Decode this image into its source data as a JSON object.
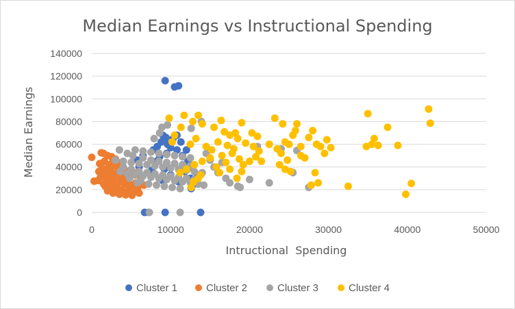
{
  "chart_data": {
    "type": "scatter",
    "title": "Median Earnings vs Instructional Spending",
    "xlabel": "Intructional  Spending",
    "ylabel": "Median Earnings",
    "xlim": [
      0,
      50000
    ],
    "ylim": [
      0,
      140000
    ],
    "xticks": [
      0,
      10000,
      20000,
      30000,
      40000,
      50000
    ],
    "yticks": [
      0,
      20000,
      40000,
      60000,
      80000,
      100000,
      120000,
      140000
    ],
    "grid": "horizontal",
    "legend": "bottom",
    "series": [
      {
        "name": "Cluster 1",
        "color": "#4472C4",
        "points": [
          [
            9300,
            116000
          ],
          [
            10500,
            110500
          ],
          [
            11000,
            111500
          ],
          [
            6700,
            0
          ],
          [
            7200,
            0
          ],
          [
            9300,
            0
          ],
          [
            13800,
            0
          ],
          [
            9000,
            68000
          ],
          [
            9400,
            66000
          ],
          [
            10300,
            65000
          ],
          [
            10800,
            68000
          ],
          [
            8800,
            62000
          ],
          [
            9600,
            60000
          ],
          [
            11300,
            62000
          ],
          [
            8300,
            58000
          ],
          [
            10000,
            57000
          ],
          [
            10800,
            55000
          ],
          [
            7800,
            55000
          ],
          [
            12000,
            55000
          ],
          [
            9500,
            52000
          ],
          [
            11500,
            50000
          ],
          [
            8600,
            49000
          ],
          [
            12200,
            45000
          ],
          [
            10500,
            43000
          ],
          [
            12600,
            40000
          ],
          [
            9200,
            38000
          ],
          [
            11800,
            36000
          ],
          [
            7600,
            37000
          ],
          [
            10000,
            33000
          ],
          [
            12500,
            30000
          ],
          [
            13000,
            25000
          ],
          [
            12600,
            21000
          ],
          [
            9000,
            28000
          ],
          [
            11000,
            27000
          ],
          [
            13400,
            33000
          ],
          [
            6500,
            50000
          ],
          [
            5800,
            46000
          ],
          [
            6000,
            40000
          ],
          [
            8200,
            45000
          ]
        ]
      },
      {
        "name": "Cluster 2",
        "color": "#ED7D31",
        "points": [
          [
            0,
            48500
          ],
          [
            300,
            27500
          ],
          [
            800,
            28000
          ],
          [
            1200,
            52500
          ],
          [
            1500,
            52000
          ],
          [
            2000,
            50000
          ],
          [
            2500,
            49000
          ],
          [
            3000,
            47000
          ],
          [
            1600,
            45000
          ],
          [
            1000,
            43000
          ],
          [
            2200,
            42000
          ],
          [
            2900,
            41000
          ],
          [
            3500,
            40000
          ],
          [
            1800,
            38000
          ],
          [
            2400,
            36000
          ],
          [
            3200,
            35000
          ],
          [
            4000,
            34000
          ],
          [
            1400,
            33000
          ],
          [
            2100,
            32000
          ],
          [
            2800,
            31000
          ],
          [
            3700,
            30000
          ],
          [
            4500,
            29000
          ],
          [
            1900,
            28000
          ],
          [
            2600,
            27000
          ],
          [
            3400,
            26000
          ],
          [
            4200,
            25000
          ],
          [
            5000,
            24000
          ],
          [
            1700,
            23000
          ],
          [
            2300,
            22000
          ],
          [
            3000,
            21000
          ],
          [
            3800,
            20000
          ],
          [
            4600,
            19000
          ],
          [
            5400,
            18000
          ],
          [
            2000,
            19000
          ],
          [
            2700,
            17000
          ],
          [
            3500,
            16000
          ],
          [
            4300,
            15500
          ],
          [
            5100,
            15000
          ],
          [
            6000,
            17000
          ],
          [
            4800,
            22000
          ],
          [
            5600,
            26000
          ],
          [
            6200,
            30000
          ],
          [
            5300,
            35000
          ],
          [
            4100,
            38000
          ],
          [
            3300,
            44000
          ],
          [
            2700,
            46000
          ],
          [
            5800,
            21000
          ],
          [
            6600,
            24000
          ],
          [
            1300,
            39000
          ],
          [
            900,
            36000
          ],
          [
            1100,
            31000
          ],
          [
            1500,
            25000
          ],
          [
            2500,
            33000
          ],
          [
            3100,
            23000
          ],
          [
            3900,
            27000
          ],
          [
            4400,
            32000
          ]
        ]
      },
      {
        "name": "Cluster 3",
        "color": "#A5A5A5",
        "points": [
          [
            7300,
            0
          ],
          [
            11200,
            0
          ],
          [
            8600,
            70000
          ],
          [
            8900,
            75000
          ],
          [
            9600,
            77000
          ],
          [
            13900,
            80000
          ],
          [
            12600,
            74000
          ],
          [
            7900,
            65000
          ],
          [
            3500,
            55000
          ],
          [
            4500,
            52000
          ],
          [
            5500,
            55000
          ],
          [
            6500,
            54000
          ],
          [
            7500,
            53000
          ],
          [
            8500,
            52000
          ],
          [
            9500,
            51000
          ],
          [
            10500,
            50000
          ],
          [
            11500,
            49000
          ],
          [
            12500,
            48000
          ],
          [
            3000,
            46000
          ],
          [
            4000,
            45000
          ],
          [
            5000,
            44000
          ],
          [
            6000,
            43000
          ],
          [
            7000,
            42000
          ],
          [
            8000,
            41000
          ],
          [
            9000,
            40000
          ],
          [
            10000,
            39000
          ],
          [
            11000,
            38000
          ],
          [
            12000,
            37000
          ],
          [
            13000,
            36000
          ],
          [
            14000,
            35000
          ],
          [
            4500,
            34000
          ],
          [
            5500,
            33000
          ],
          [
            6500,
            32000
          ],
          [
            7500,
            31000
          ],
          [
            8500,
            30000
          ],
          [
            9500,
            29000
          ],
          [
            10500,
            28000
          ],
          [
            11500,
            27000
          ],
          [
            12500,
            26000
          ],
          [
            13500,
            25000
          ],
          [
            5000,
            38000
          ],
          [
            6000,
            36000
          ],
          [
            7000,
            35000
          ],
          [
            8000,
            34000
          ],
          [
            9000,
            33000
          ],
          [
            10000,
            32000
          ],
          [
            11000,
            31000
          ],
          [
            12000,
            30000
          ],
          [
            13000,
            29000
          ],
          [
            6500,
            48000
          ],
          [
            7500,
            46000
          ],
          [
            8500,
            45000
          ],
          [
            9500,
            44000
          ],
          [
            10500,
            43000
          ],
          [
            11500,
            42000
          ],
          [
            12500,
            41000
          ],
          [
            5200,
            50000
          ],
          [
            6200,
            28000
          ],
          [
            7200,
            25000
          ],
          [
            8200,
            24000
          ],
          [
            9200,
            23000
          ],
          [
            10200,
            22000
          ],
          [
            11200,
            21000
          ],
          [
            15500,
            40000
          ],
          [
            16000,
            35000
          ],
          [
            17000,
            30000
          ],
          [
            17500,
            26000
          ],
          [
            18500,
            23000
          ],
          [
            18800,
            22000
          ],
          [
            20000,
            29000
          ],
          [
            22500,
            26000
          ],
          [
            21000,
            58000
          ],
          [
            24000,
            56000
          ],
          [
            25500,
            35000
          ],
          [
            26000,
            54500
          ],
          [
            27500,
            22000
          ],
          [
            14500,
            52000
          ],
          [
            15000,
            46000
          ],
          [
            16500,
            44000
          ],
          [
            14200,
            24000
          ],
          [
            4000,
            40000
          ],
          [
            3600,
            36000
          ],
          [
            4800,
            30000
          ],
          [
            5800,
            26000
          ]
        ]
      },
      {
        "name": "Cluster 4",
        "color": "#FFC000",
        "points": [
          [
            9800,
            83000
          ],
          [
            11300,
            75000
          ],
          [
            10500,
            68000
          ],
          [
            10200,
            62000
          ],
          [
            11700,
            85500
          ],
          [
            13500,
            85500
          ],
          [
            12800,
            80000
          ],
          [
            14000,
            78000
          ],
          [
            16400,
            81000
          ],
          [
            15500,
            75000
          ],
          [
            16800,
            71000
          ],
          [
            17500,
            68000
          ],
          [
            18500,
            65000
          ],
          [
            19000,
            79000
          ],
          [
            18200,
            70000
          ],
          [
            13200,
            65000
          ],
          [
            12500,
            60000
          ],
          [
            14500,
            58000
          ],
          [
            15200,
            55000
          ],
          [
            16000,
            62000
          ],
          [
            17200,
            59000
          ],
          [
            18000,
            56000
          ],
          [
            19500,
            61000
          ],
          [
            17800,
            52000
          ],
          [
            16500,
            50000
          ],
          [
            15000,
            48000
          ],
          [
            14000,
            45000
          ],
          [
            13000,
            42000
          ],
          [
            12000,
            38000
          ],
          [
            11200,
            35000
          ],
          [
            13500,
            30000
          ],
          [
            12900,
            27000
          ],
          [
            12600,
            22000
          ],
          [
            13800,
            33000
          ],
          [
            15800,
            40000
          ],
          [
            17000,
            44000
          ],
          [
            18700,
            47000
          ],
          [
            19200,
            42000
          ],
          [
            17500,
            38000
          ],
          [
            16200,
            35000
          ],
          [
            19000,
            36000
          ],
          [
            18400,
            30000
          ],
          [
            20300,
            70000
          ],
          [
            21000,
            67000
          ],
          [
            20500,
            58000
          ],
          [
            21200,
            54000
          ],
          [
            20800,
            49000
          ],
          [
            21500,
            45000
          ],
          [
            20000,
            45000
          ],
          [
            22500,
            60000
          ],
          [
            23200,
            83000
          ],
          [
            24200,
            78000
          ],
          [
            23500,
            56000
          ],
          [
            24500,
            62000
          ],
          [
            25000,
            60000
          ],
          [
            24000,
            52000
          ],
          [
            25500,
            68000
          ],
          [
            26000,
            78000
          ],
          [
            25800,
            72000
          ],
          [
            24800,
            46000
          ],
          [
            23800,
            42000
          ],
          [
            24500,
            38000
          ],
          [
            25200,
            36000
          ],
          [
            26500,
            50000
          ],
          [
            27000,
            48000
          ],
          [
            26500,
            58000
          ],
          [
            27500,
            66000
          ],
          [
            28000,
            72000
          ],
          [
            28500,
            60000
          ],
          [
            29000,
            58000
          ],
          [
            29800,
            64000
          ],
          [
            30300,
            57000
          ],
          [
            29500,
            52000
          ],
          [
            28300,
            35000
          ],
          [
            27800,
            24000
          ],
          [
            28700,
            26000
          ],
          [
            32500,
            23000
          ],
          [
            35000,
            87000
          ],
          [
            37500,
            75000
          ],
          [
            35800,
            65000
          ],
          [
            35500,
            60000
          ],
          [
            36300,
            59000
          ],
          [
            34800,
            58000
          ],
          [
            38800,
            59000
          ],
          [
            42700,
            91000
          ],
          [
            42900,
            78500
          ],
          [
            40500,
            25500
          ],
          [
            39800,
            16000
          ]
        ]
      }
    ]
  }
}
